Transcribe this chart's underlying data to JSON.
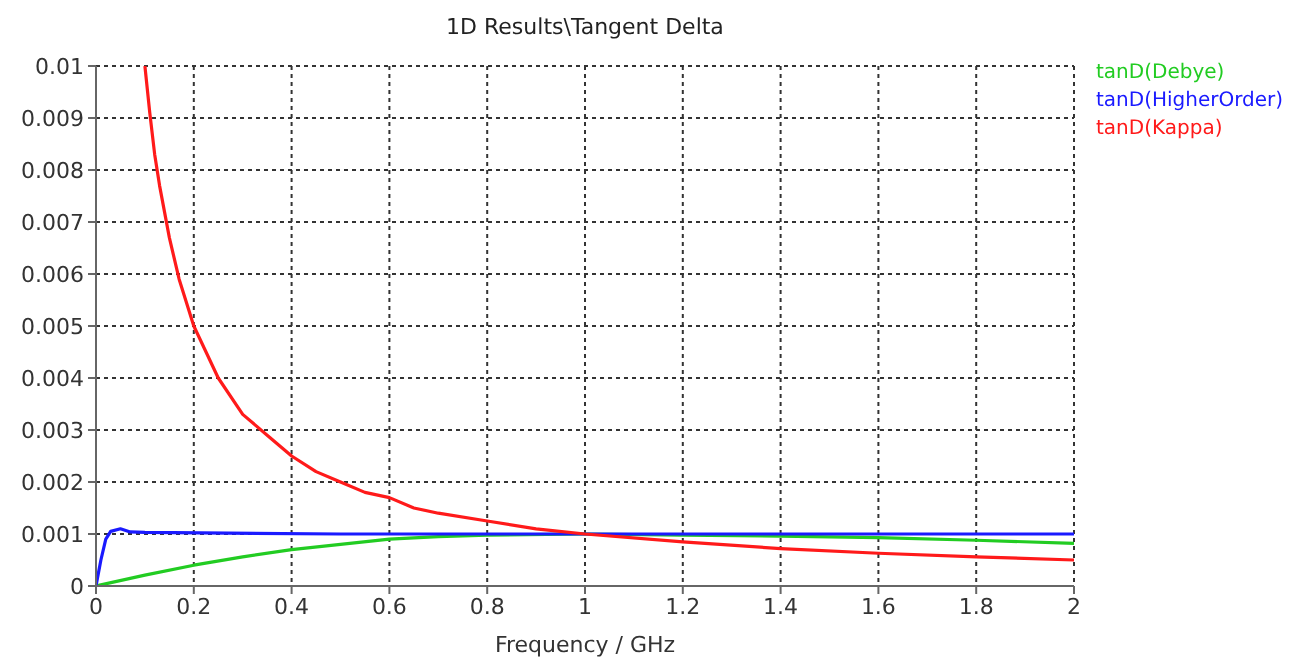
{
  "chart_data": {
    "type": "line",
    "title": "1D Results\\Tangent Delta",
    "xlabel": "Frequency / GHz",
    "xlim": [
      0,
      2
    ],
    "xticks": [
      0,
      0.2,
      0.4,
      0.6,
      0.8,
      1,
      1.2,
      1.4,
      1.6,
      1.8,
      2
    ],
    "ylim": [
      0,
      0.01
    ],
    "yticks": [
      0,
      0.001,
      0.002,
      0.003,
      0.004,
      0.005,
      0.006,
      0.007,
      0.008,
      0.009,
      0.01
    ],
    "grid": true,
    "legend": "top right",
    "marker": "none",
    "line_style": "solid",
    "series": [
      {
        "name": "tanD(Debye)",
        "color": "#22cc22",
        "x": [
          0,
          0.1,
          0.2,
          0.3,
          0.4,
          0.5,
          0.6,
          0.7,
          0.8,
          1,
          1.2,
          1.4,
          1.6,
          1.8,
          2
        ],
        "values": [
          0,
          0.00021,
          0.0004,
          0.00056,
          0.0007,
          0.0008,
          0.0009,
          0.00095,
          0.00098,
          0.001,
          0.00098,
          0.00096,
          0.00093,
          0.00088,
          0.00082
        ]
      },
      {
        "name": "tanD(HigherOrder)",
        "color": "#1a1aff",
        "x": [
          0,
          0.01,
          0.02,
          0.03,
          0.05,
          0.07,
          0.1,
          0.5,
          1,
          1.5,
          2
        ],
        "values": [
          0,
          0.0005,
          0.0009,
          0.00105,
          0.0011,
          0.00104,
          0.00103,
          0.001,
          0.001,
          0.001,
          0.001
        ]
      },
      {
        "name": "tanD(Kappa)",
        "color": "#ff1a1a",
        "x": [
          0.1,
          0.11,
          0.12,
          0.13,
          0.15,
          0.17,
          0.2,
          0.25,
          0.3,
          0.35,
          0.4,
          0.45,
          0.5,
          0.55,
          0.6,
          0.65,
          0.7,
          0.8,
          0.9,
          1,
          1.2,
          1.4,
          1.6,
          1.8,
          2
        ],
        "values": [
          0.01,
          0.0091,
          0.0083,
          0.0077,
          0.0067,
          0.0059,
          0.005,
          0.004,
          0.0033,
          0.0029,
          0.0025,
          0.0022,
          0.002,
          0.0018,
          0.0017,
          0.0015,
          0.0014,
          0.00125,
          0.0011,
          0.001,
          0.00085,
          0.00072,
          0.00063,
          0.00056,
          0.0005
        ]
      }
    ]
  }
}
